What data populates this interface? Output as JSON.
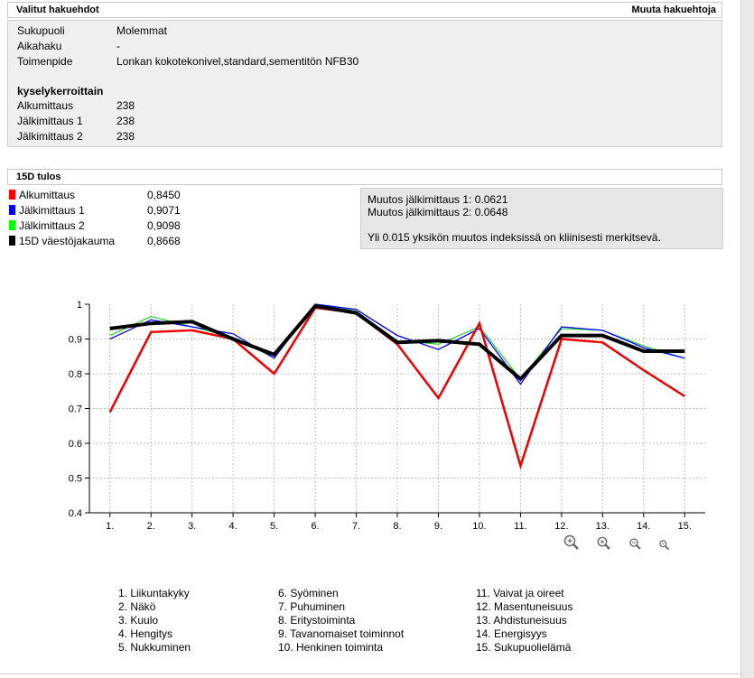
{
  "criteria": {
    "title": "Valitut hakuehdot",
    "modify_link": "Muuta hakuehtoja",
    "rows": [
      {
        "label": "Sukupuoli",
        "value": "Molemmat"
      },
      {
        "label": "Aikahaku",
        "value": "-"
      },
      {
        "label": "Toimenpide",
        "value": "Lonkan kokotekonivel,standard,sementitön NFB30"
      }
    ],
    "counts_title": "kyselykerroittain",
    "counts": [
      {
        "label": "Alkumittaus",
        "value": "238"
      },
      {
        "label": "Jälkimittaus 1",
        "value": "238"
      },
      {
        "label": "Jälkimittaus 2",
        "value": "238"
      }
    ]
  },
  "results": {
    "title": "15D tulos",
    "legend": [
      {
        "label": "Alkumittaus",
        "value": "0,8450",
        "color": "#ff0000"
      },
      {
        "label": "Jälkimittaus 1",
        "value": "0,9071",
        "color": "#0000ff"
      },
      {
        "label": "Jälkimittaus 2",
        "value": "0,9098",
        "color": "#00ff00"
      },
      {
        "label": "15D väestöjakauma",
        "value": "0,8668",
        "color": "#000000"
      }
    ],
    "changes": [
      "Muutos jälkimittaus 1: 0.0621",
      "Muutos jälkimittaus 2: 0.0648"
    ],
    "note": "Yli 0.015 yksikön muutos indeksissä on kliinisesti merkitsevä."
  },
  "chart_data": {
    "type": "line",
    "x": [
      "1.",
      "2.",
      "3.",
      "4.",
      "5.",
      "6.",
      "7.",
      "8.",
      "9.",
      "10.",
      "11.",
      "12.",
      "13.",
      "14.",
      "15."
    ],
    "ylim": [
      0.4,
      1.0
    ],
    "yticks": [
      "0.4",
      "0.5",
      "0.6",
      "0.7",
      "0.8",
      "0.9",
      "1"
    ],
    "grid": true,
    "series": [
      {
        "name": "Jälkimittaus 2",
        "color": "#00cc00",
        "width": 1,
        "values": [
          0.91,
          0.965,
          0.935,
          0.905,
          0.845,
          1.0,
          0.98,
          0.895,
          0.885,
          0.935,
          0.785,
          0.93,
          0.925,
          0.88,
          0.845
        ]
      },
      {
        "name": "Jälkimittaus 1",
        "color": "#0000ff",
        "width": 1.3,
        "values": [
          0.9,
          0.955,
          0.935,
          0.915,
          0.845,
          1.0,
          0.985,
          0.91,
          0.87,
          0.93,
          0.77,
          0.935,
          0.925,
          0.875,
          0.845
        ]
      },
      {
        "name": "Alkumittaus",
        "color": "#ee0000",
        "width": 2.5,
        "values": [
          0.69,
          0.92,
          0.925,
          0.9,
          0.8,
          0.99,
          0.975,
          0.885,
          0.73,
          0.945,
          0.535,
          0.9,
          0.89,
          0.81,
          0.735
        ]
      },
      {
        "name": "15D väestöjakauma",
        "color": "#000000",
        "width": 4,
        "values": [
          0.93,
          0.945,
          0.95,
          0.9,
          0.855,
          0.995,
          0.975,
          0.89,
          0.895,
          0.885,
          0.785,
          0.91,
          0.91,
          0.865,
          0.865
        ]
      }
    ]
  },
  "dimensions": [
    [
      "1. Liikuntakyky",
      "2. Näkö",
      "3. Kuulo",
      "4. Hengitys",
      "5. Nukkuminen"
    ],
    [
      "6. Syöminen",
      "7. Puhuminen",
      "8. Eritystoiminta",
      "9. Tavanomaiset toiminnot",
      "10. Henkinen toiminta"
    ],
    [
      "11. Vaivat ja oireet",
      "12. Masentuneisuus",
      "13. Ahdistuneisuus",
      "14. Energisyys",
      "15. Sukupuolielämä"
    ]
  ],
  "icons": [
    "zoom-in-icon",
    "zoom-in-icon",
    "zoom-out-icon",
    "zoom-out-icon"
  ]
}
